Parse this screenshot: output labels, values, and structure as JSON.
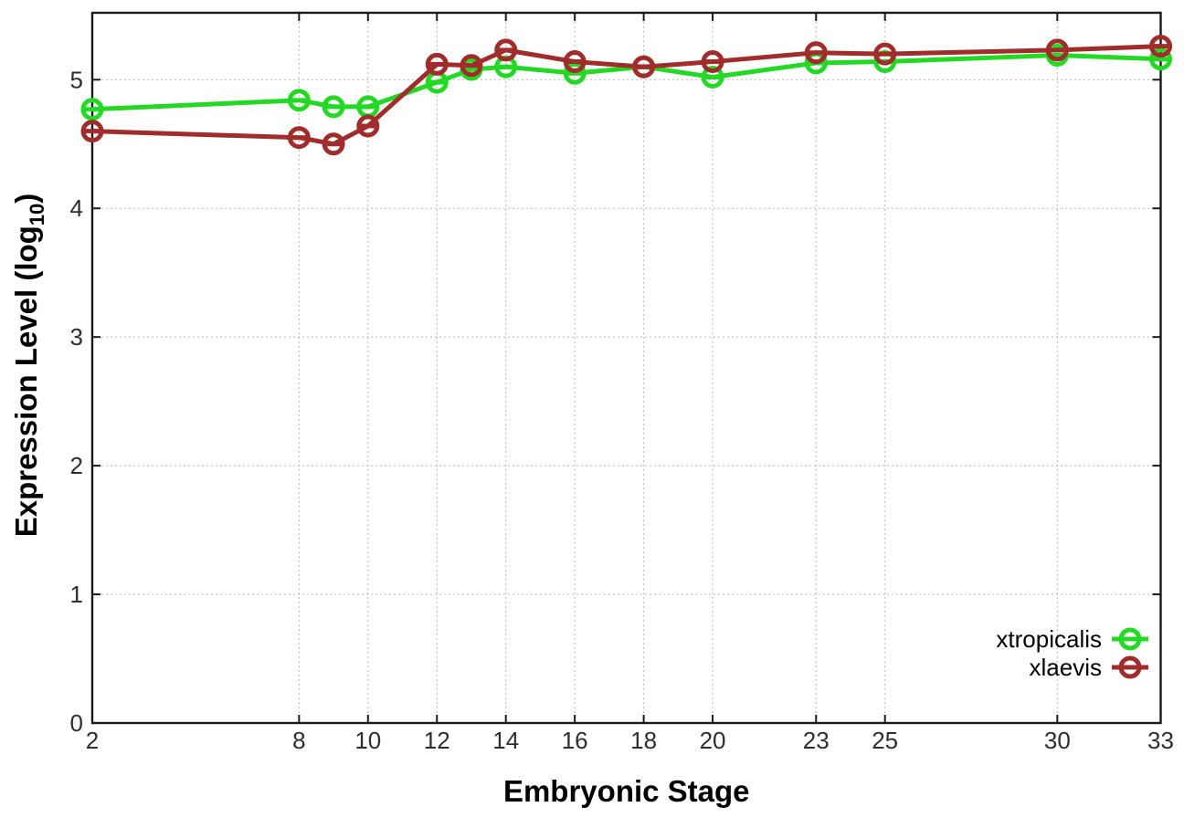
{
  "chart_data": {
    "type": "line",
    "title": "",
    "xlabel": "Embryonic Stage",
    "ylabel": "Expression Level (log10)",
    "ylabel_parts": {
      "main": "Expression Level (log",
      "sub": "10",
      "close": ")"
    },
    "x": [
      2,
      8,
      9,
      10,
      12,
      13,
      14,
      16,
      18,
      20,
      23,
      25,
      30,
      33
    ],
    "xticks": [
      2,
      8,
      10,
      12,
      14,
      16,
      18,
      20,
      23,
      25,
      30,
      33
    ],
    "xtick_labels": [
      "2",
      "8",
      "10",
      "12",
      "14",
      "16",
      "18",
      "20",
      "23",
      "25",
      "30",
      "33"
    ],
    "yticks": [
      0,
      1,
      2,
      3,
      4,
      5
    ],
    "ytick_labels": [
      "0",
      "1",
      "2",
      "3",
      "4",
      "5"
    ],
    "xlim": [
      2,
      33
    ],
    "ylim": [
      0,
      5.52
    ],
    "grid": true,
    "legend": {
      "position": "bottom-right",
      "entries": [
        "xtropicalis",
        "xlaevis"
      ]
    },
    "series": [
      {
        "name": "xtropicalis",
        "color": "#25d825",
        "marker": "circle-dash",
        "values": [
          4.77,
          4.84,
          4.79,
          4.79,
          4.98,
          5.08,
          5.1,
          5.05,
          5.1,
          5.02,
          5.13,
          5.14,
          5.19,
          5.16
        ]
      },
      {
        "name": "xlaevis",
        "color": "#a02c2c",
        "marker": "circle-dash",
        "values": [
          4.6,
          4.55,
          4.5,
          4.64,
          5.12,
          5.11,
          5.23,
          5.14,
          5.1,
          5.14,
          5.21,
          5.2,
          5.23,
          5.26
        ]
      }
    ]
  },
  "style": {
    "background": "#ffffff",
    "axis_color": "#1a1a1a",
    "grid_color": "#b8b8b8",
    "tick_label_color": "#2e2e2e",
    "text_color": "#000000"
  }
}
